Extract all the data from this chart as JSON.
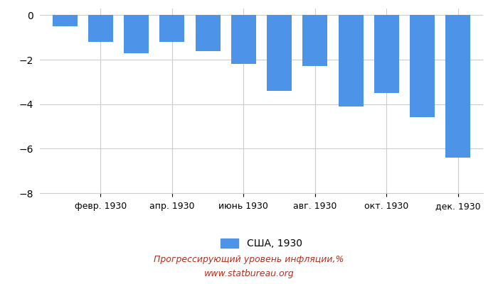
{
  "months": [
    1,
    2,
    3,
    4,
    5,
    6,
    7,
    8,
    9,
    10,
    11,
    12
  ],
  "values": [
    -0.5,
    -1.2,
    -1.7,
    -1.2,
    -1.6,
    -2.2,
    -3.4,
    -2.3,
    -4.1,
    -3.5,
    -4.6,
    -6.4
  ],
  "bar_color": "#4d94e8",
  "xtick_positions": [
    2,
    4,
    6,
    8,
    10,
    12
  ],
  "xtick_labels": [
    "февр. 1930",
    "апр. 1930",
    "июнь 1930",
    "авг. 1930",
    "окт. 1930",
    "дек. 1930"
  ],
  "ylim": [
    -8,
    0.3
  ],
  "yticks": [
    0,
    -2,
    -4,
    -6,
    -8
  ],
  "legend_label": "США, 1930",
  "title_line1": "Прогрессирующий уровень инфляции,%",
  "title_line2": "www.statbureau.org",
  "title_color": "#b03020",
  "background_color": "#ffffff",
  "grid_color": "#cccccc",
  "bar_width": 0.7
}
